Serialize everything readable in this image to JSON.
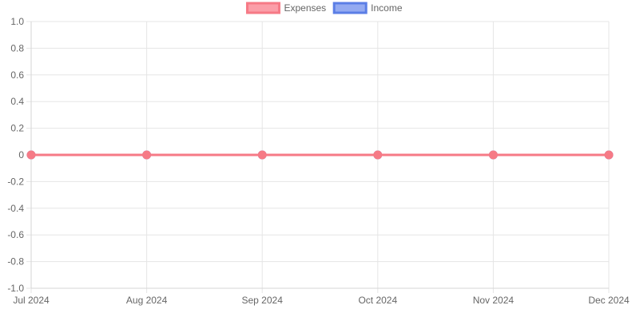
{
  "chart_data": {
    "type": "line",
    "title": "",
    "xlabel": "",
    "ylabel": "",
    "categories": [
      "Jul 2024",
      "Aug 2024",
      "Sep 2024",
      "Oct 2024",
      "Nov 2024",
      "Dec 2024"
    ],
    "ylim": [
      -1.0,
      1.0
    ],
    "yticks": [
      "1.0",
      "0.8",
      "0.6",
      "0.4",
      "0.2",
      "0",
      "-0.2",
      "-0.4",
      "-0.6",
      "-0.8",
      "-1.0"
    ],
    "grid": true,
    "legend_position": "top-center",
    "series": [
      {
        "name": "Expenses",
        "values": [
          0,
          0,
          0,
          0,
          0,
          0
        ],
        "color": "#f67a86",
        "fill": "#fb9ea8"
      },
      {
        "name": "Income",
        "values": [
          0,
          0,
          0,
          0,
          0,
          0
        ],
        "color": "#5b7ee6",
        "fill": "#94aaf1"
      }
    ]
  }
}
